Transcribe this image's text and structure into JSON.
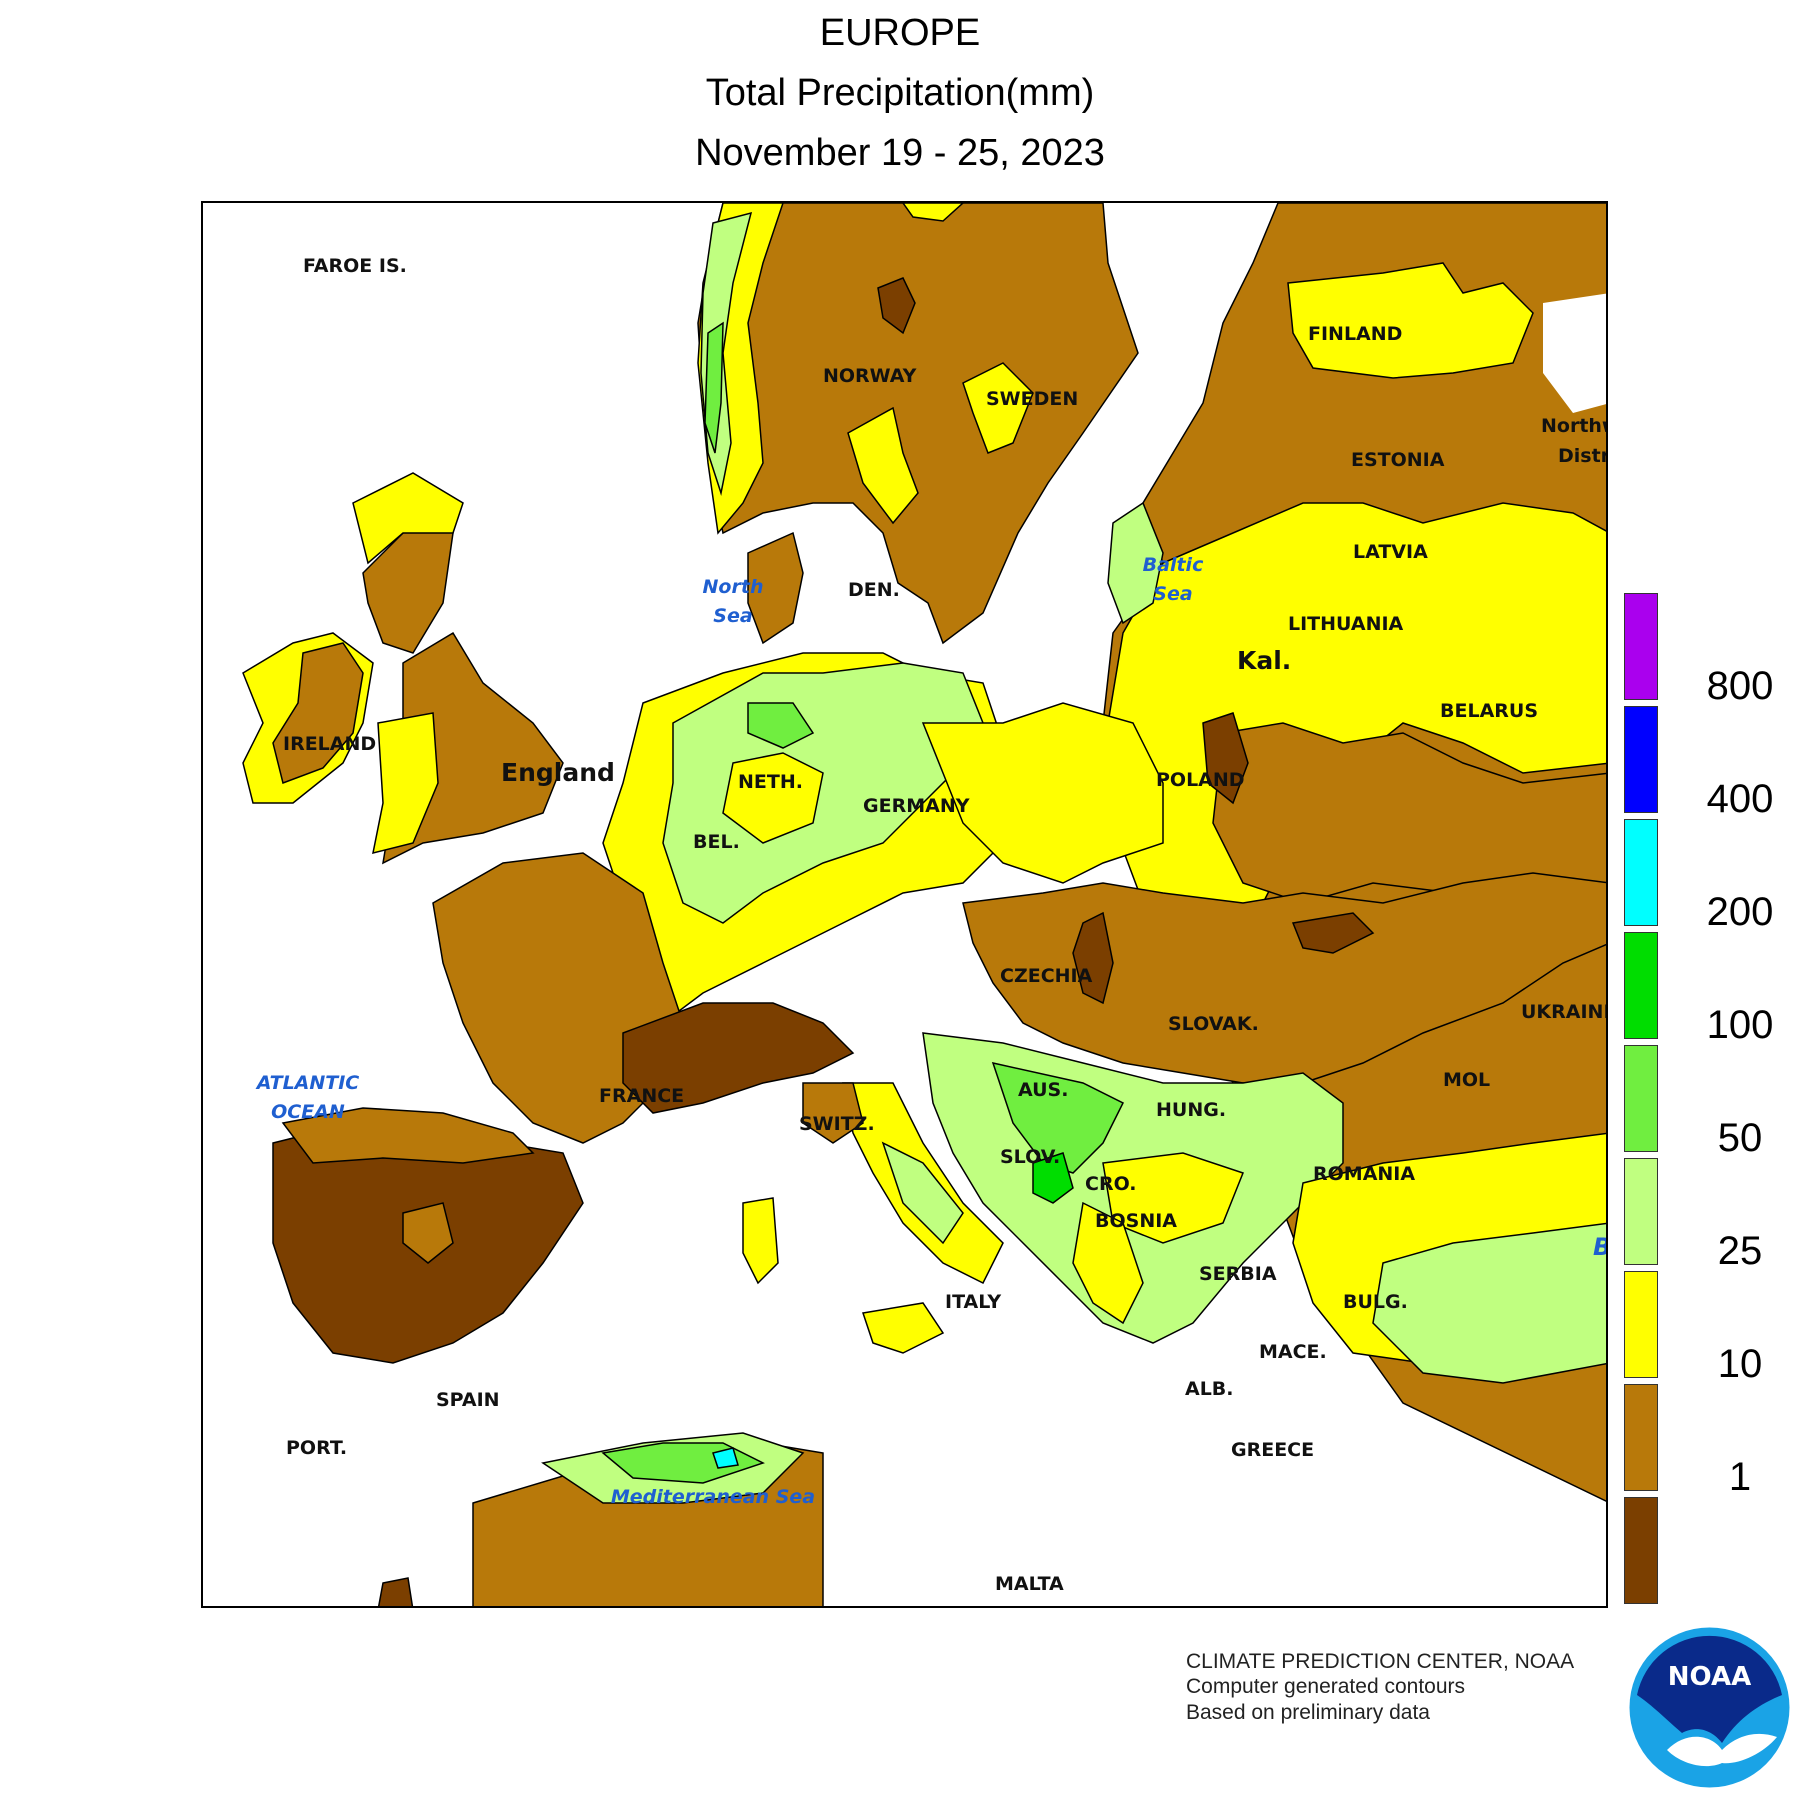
{
  "header": {
    "region": "EUROPE",
    "variable": "Total Precipitation(mm)",
    "period": "November 19 - 25, 2023"
  },
  "colors": {
    "below_1": "#7b3f00",
    "1_10": "#b8790a",
    "10_25": "#ffff00",
    "25_50": "#c0ff80",
    "50_100": "#70ee40",
    "100_200": "#00dd00",
    "200_400": "#00ffff",
    "400_800": "#0000ff",
    "above_800": "#aa00ee",
    "water": "#ffffff"
  },
  "legend": {
    "labels": [
      "800",
      "400",
      "200",
      "100",
      "50",
      "25",
      "10",
      "1"
    ]
  },
  "map_labels": {
    "faroe": "FAROE IS.",
    "norway": "NORWAY",
    "sweden": "SWEDEN",
    "finland": "FINLAND",
    "estonia": "ESTONIA",
    "latvia": "LATVIA",
    "lithuania": "LITHUANIA",
    "kal": "Kal.",
    "northwest_1": "Northw",
    "northwest_2": "Distri",
    "belarus": "BELARUS",
    "ireland": "IRELAND",
    "england": "England",
    "den": "DEN.",
    "neth": "NETH.",
    "bel": "BEL.",
    "germany": "GERMANY",
    "poland": "POLAND",
    "czechia": "CZECHIA",
    "slovak": "SLOVAK.",
    "ukraine": "UKRAINE",
    "mol": "MOL",
    "aus": "AUS.",
    "hung": "HUNG.",
    "romania": "ROMANIA",
    "france": "FRANCE",
    "switz": "SWITZ.",
    "slov": "SLOV.",
    "cro": "CRO.",
    "bosnia": "BOSNIA",
    "serbia": "SERBIA",
    "bulg": "BULG.",
    "mace": "MACE.",
    "alb": "ALB.",
    "greece": "GREECE",
    "italy": "ITALY",
    "spain": "SPAIN",
    "port": "PORT.",
    "malta": "MALTA",
    "b_edge": "B"
  },
  "water_labels": {
    "north_sea_1": "North",
    "north_sea_2": "Sea",
    "baltic_1": "Baltic",
    "baltic_2": "Sea",
    "atlantic_1": "ATLANTIC",
    "atlantic_2": "OCEAN",
    "med": "Mediterranean Sea"
  },
  "footer": {
    "line1": "CLIMATE PREDICTION CENTER, NOAA",
    "line2": "Computer generated contours",
    "line3": "Based on preliminary data"
  },
  "logo": {
    "text": "NOAA"
  }
}
